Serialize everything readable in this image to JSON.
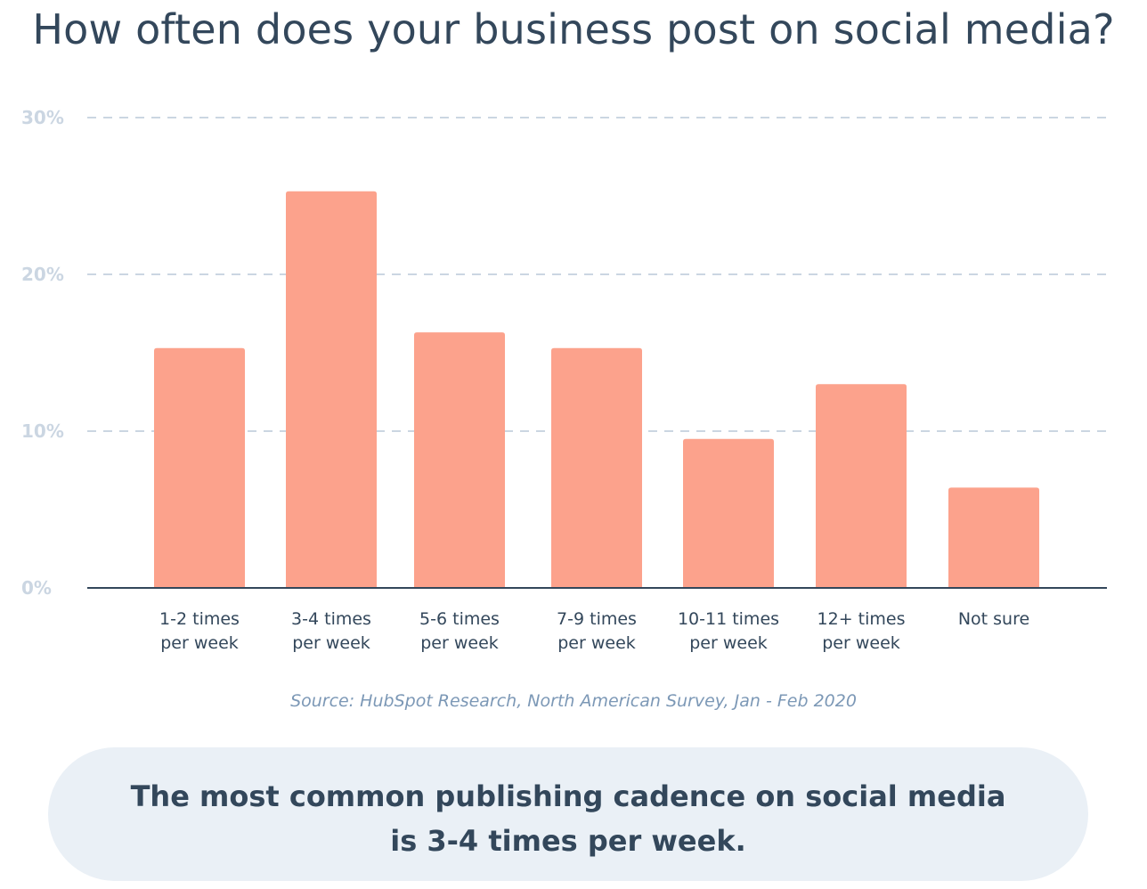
{
  "title": "How often does your business post on social media?",
  "source": "Source: HubSpot Research, North American Survey, Jan - Feb 2020",
  "callout": {
    "line1": "The most common publishing cadence on social media",
    "line2": "is 3-4 times per week."
  },
  "colors": {
    "bar": "#fca28c",
    "grid": "#cbd6e2",
    "axis": "#33475b",
    "tick_label": "#cbd6e2",
    "category_label": "#33475b",
    "callout_bg": "#eaf0f6"
  },
  "chart_data": {
    "type": "bar",
    "title": "How often does your business post on social media?",
    "xlabel": "",
    "ylabel": "",
    "ylim": [
      0,
      30
    ],
    "yticks": [
      0,
      10,
      20,
      30
    ],
    "ytick_labels": [
      "0%",
      "10%",
      "20%",
      "30%"
    ],
    "grid": true,
    "categories": [
      [
        "1-2 times",
        "per week"
      ],
      [
        "3-4 times",
        "per week"
      ],
      [
        "5-6 times",
        "per week"
      ],
      [
        "7-9 times",
        "per week"
      ],
      [
        "10-11 times",
        "per week"
      ],
      [
        "12+ times",
        "per week"
      ],
      [
        "Not sure"
      ]
    ],
    "values": [
      15.3,
      25.3,
      16.3,
      15.3,
      9.5,
      13.0,
      6.4
    ]
  }
}
